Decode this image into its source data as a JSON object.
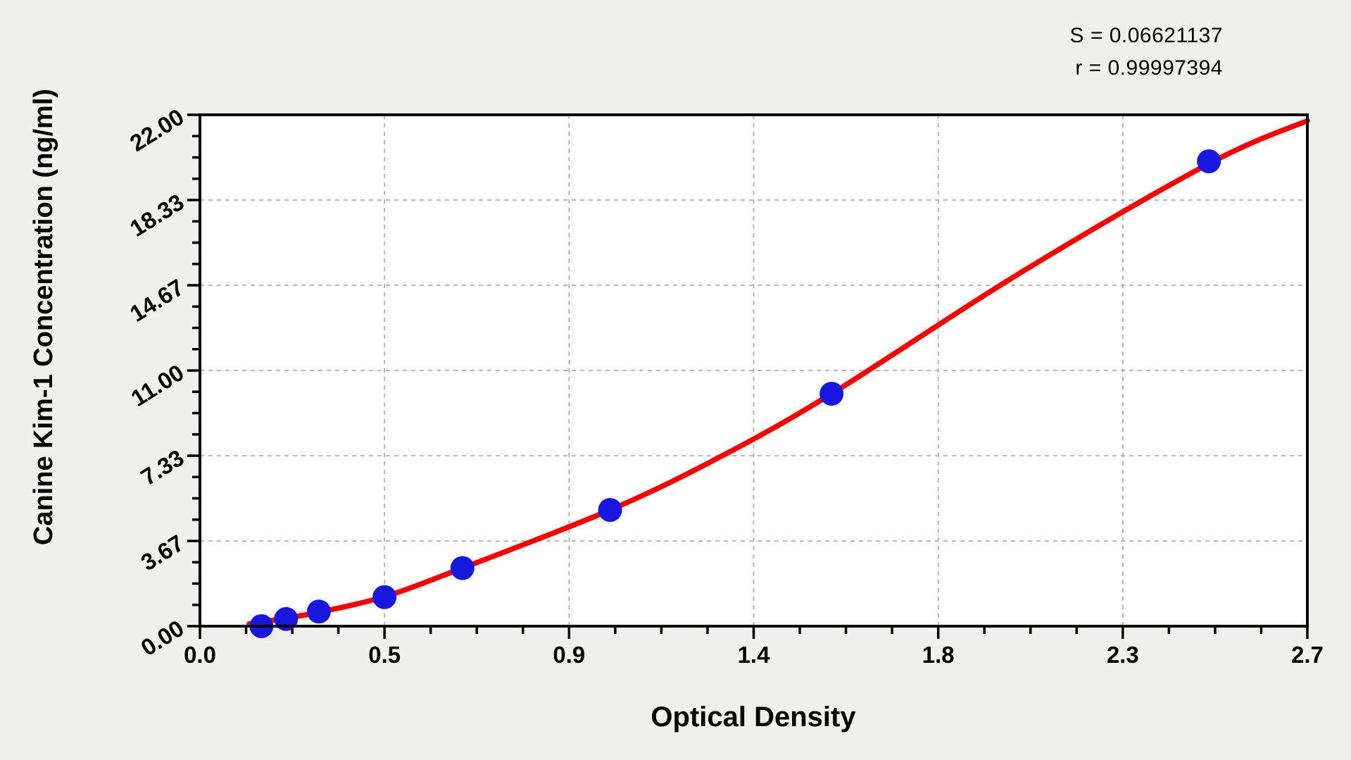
{
  "stats": {
    "s_label": "S = 0.06621137",
    "r_label": "r = 0.99997394"
  },
  "chart_data": {
    "type": "scatter",
    "title": "",
    "xlabel": "Optical Density",
    "ylabel": "Canine Kim-1 Concentration (ng/ml)",
    "xlim": [
      0,
      2.7
    ],
    "ylim": [
      0,
      22
    ],
    "grid": "dashed major gridlines, both axes",
    "legend": "none",
    "x_major_ticks": [
      {
        "value": 0,
        "label": "0.0"
      },
      {
        "value": 0.45,
        "label": "0.5"
      },
      {
        "value": 0.9,
        "label": "0.9"
      },
      {
        "value": 1.35,
        "label": "1.4"
      },
      {
        "value": 1.8,
        "label": "1.8"
      },
      {
        "value": 2.25,
        "label": "2.3"
      },
      {
        "value": 2.7,
        "label": "2.7"
      }
    ],
    "y_major_ticks": [
      {
        "value": 0,
        "label": "0.00"
      },
      {
        "value": 3.667,
        "label": "3.67"
      },
      {
        "value": 7.333,
        "label": "7.33"
      },
      {
        "value": 11,
        "label": "11.00"
      },
      {
        "value": 14.667,
        "label": "14.67"
      },
      {
        "value": 18.333,
        "label": "18.33"
      },
      {
        "value": 22,
        "label": "22.00"
      }
    ],
    "minor_ticks_per_major_interval": 3,
    "points": [
      {
        "od": 0.15,
        "conc": 0.0
      },
      {
        "od": 0.21,
        "conc": 0.31
      },
      {
        "od": 0.29,
        "conc": 0.63
      },
      {
        "od": 0.45,
        "conc": 1.25
      },
      {
        "od": 0.64,
        "conc": 2.5
      },
      {
        "od": 1.0,
        "conc": 5.0
      },
      {
        "od": 1.54,
        "conc": 10.0
      },
      {
        "od": 2.46,
        "conc": 20.0
      }
    ],
    "fit_curve_anchors": [
      [
        0.12,
        0.1
      ],
      [
        0.21,
        0.35
      ],
      [
        0.29,
        0.6
      ],
      [
        0.45,
        1.27
      ],
      [
        0.64,
        2.5
      ],
      [
        1.0,
        5.0
      ],
      [
        1.27,
        7.3
      ],
      [
        1.54,
        10.0
      ],
      [
        2.0,
        15.2
      ],
      [
        2.46,
        19.9
      ],
      [
        2.7,
        21.75
      ]
    ],
    "colors": {
      "point": "#1717dd",
      "curve": "#f70000",
      "grid": "#b0b0b0",
      "axis": "#000000",
      "plot_bg": "#ffffff",
      "page_bg": "#f0f0ee",
      "text": "#000000"
    }
  }
}
